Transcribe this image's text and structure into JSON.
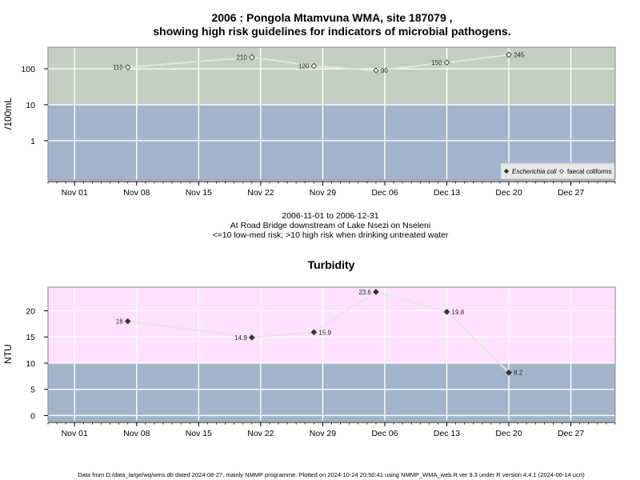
{
  "colors": {
    "upper_risk_band": "#C3CFC3",
    "lower_safe_band": "#A2B5CD",
    "turbidity_upper_band": "#FFE1FF",
    "grid": "#ffffff",
    "line": "#e6e6e6",
    "frame": "#888888"
  },
  "header": {
    "title_line1": "2006 : Pongola Mtamvuna WMA, site 187079 ,",
    "title_line2": "showing high risk guidelines for indicators of microbial pathogens."
  },
  "subtitle": {
    "line1": "2006-11-01 to 2006-12-31",
    "line2": "At Road Bridge downstream of Lake Nsezi on Nseleni",
    "line3": "<=10 low-med risk; >10 high risk when drinking untreated water"
  },
  "footer": {
    "text": "Data from D:/data_large/wq/wms.db dated 2024-08-27, mainly NMMP programme. Plotted on 2024-10-24 20:50:41 using NMMP_WMA_web.R ver 9.3 under R version 4.4.1 (2024-06-14 ucrt)"
  },
  "chart_data": [
    {
      "type": "scatter",
      "title": "",
      "ylabel": "/100mL",
      "y_scale": "log",
      "ylim": [
        0.08,
        400
      ],
      "y_ticks": [
        1,
        10,
        100
      ],
      "y_tick_labels": [
        "1",
        "10",
        "100"
      ],
      "threshold": 10,
      "xlim": [
        "2006-10-29",
        "2007-01-01"
      ],
      "x_ticks": [
        "2006-11-01",
        "2006-11-08",
        "2006-11-15",
        "2006-11-22",
        "2006-11-29",
        "2006-12-06",
        "2006-12-13",
        "2006-12-20",
        "2006-12-27"
      ],
      "x_tick_labels": [
        "Nov 01",
        "Nov 08",
        "Nov 15",
        "Nov 22",
        "Nov 29",
        "Dec 06",
        "Dec 13",
        "Dec 20",
        "Dec 27"
      ],
      "legend_position": "bottom-right",
      "legend": [
        "Escherichia coli",
        "faecal coliforms"
      ],
      "series": [
        {
          "name": "faecal coliforms",
          "marker": "open-diamond",
          "x": [
            "2006-11-07",
            "2006-11-21",
            "2006-11-28",
            "2006-12-05",
            "2006-12-13",
            "2006-12-20"
          ],
          "y": [
            110,
            210,
            120,
            90,
            150,
            245
          ],
          "labels": [
            "110",
            "210",
            "120",
            "90",
            "150",
            "245"
          ],
          "label_side": [
            "left",
            "left",
            "left",
            "right",
            "left",
            "right"
          ]
        }
      ]
    },
    {
      "type": "scatter",
      "title": "Turbidity",
      "ylabel": "NTU",
      "ylim": [
        -1,
        24.5
      ],
      "y_ticks": [
        0,
        5,
        10,
        15,
        20
      ],
      "y_tick_labels": [
        "0",
        "5",
        "10",
        "15",
        "20"
      ],
      "threshold": 10,
      "xlim": [
        "2006-10-29",
        "2007-01-01"
      ],
      "x_ticks": [
        "2006-11-01",
        "2006-11-08",
        "2006-11-15",
        "2006-11-22",
        "2006-11-29",
        "2006-12-06",
        "2006-12-13",
        "2006-12-20",
        "2006-12-27"
      ],
      "x_tick_labels": [
        "Nov 01",
        "Nov 08",
        "Nov 15",
        "Nov 22",
        "Nov 29",
        "Dec 06",
        "Dec 13",
        "Dec 20",
        "Dec 27"
      ],
      "series": [
        {
          "marker": "filled-diamond",
          "x": [
            "2006-11-07",
            "2006-11-21",
            "2006-11-28",
            "2006-12-05",
            "2006-12-13",
            "2006-12-20"
          ],
          "y": [
            18,
            14.9,
            15.9,
            23.6,
            19.8,
            8.2
          ],
          "labels": [
            "18",
            "14.9",
            "15.9",
            "23.6",
            "19.8",
            "8.2"
          ],
          "label_side": [
            "left",
            "left",
            "right",
            "left",
            "right",
            "right"
          ]
        }
      ]
    }
  ]
}
